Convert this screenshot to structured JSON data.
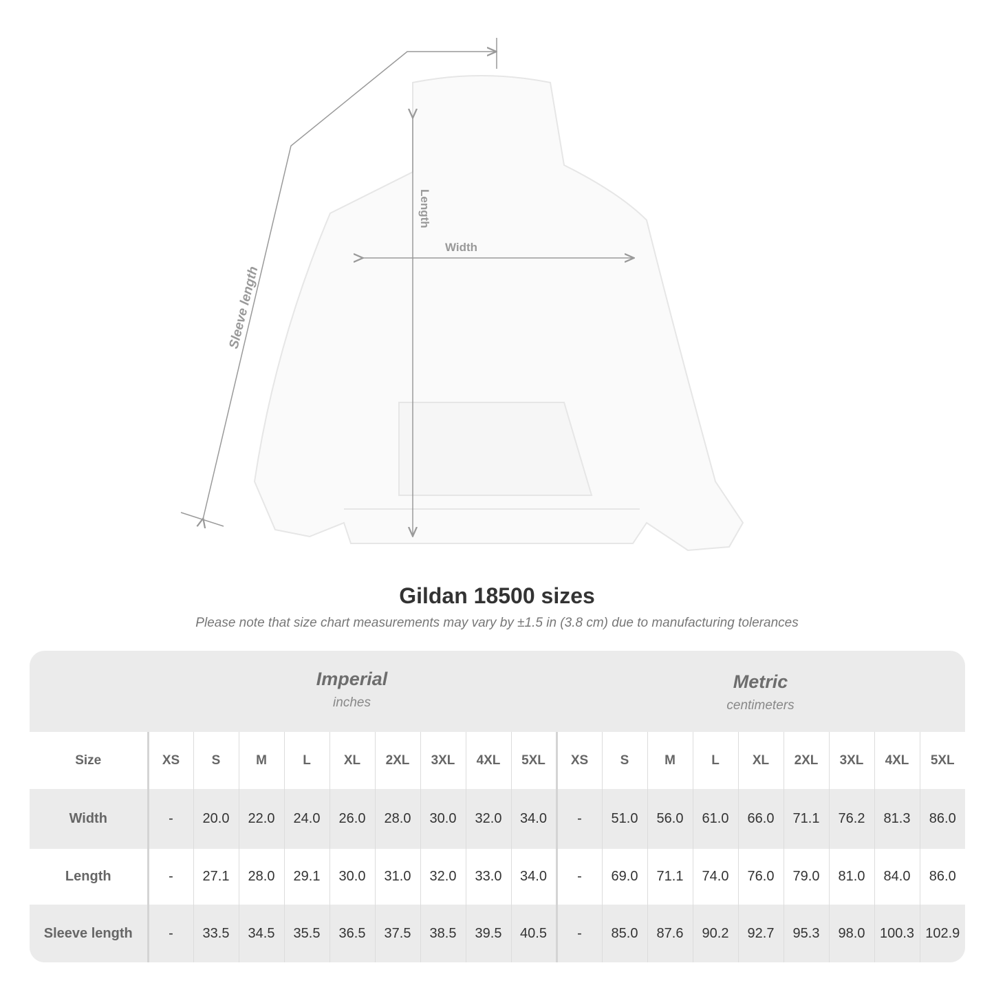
{
  "diagram": {
    "labels": {
      "length": "Length",
      "width": "Width",
      "sleeve": "Sleeve length"
    }
  },
  "title": "Gildan 18500 sizes",
  "note": "Please note that size chart measurements may vary by ±1.5 in (3.8 cm) due to manufacturing tolerances",
  "imperial": {
    "name": "Imperial",
    "unit": "inches"
  },
  "metric": {
    "name": "Metric",
    "unit": "centimeters"
  },
  "size_label": "Size",
  "sizes": [
    "XS",
    "S",
    "M",
    "L",
    "XL",
    "2XL",
    "3XL",
    "4XL",
    "5XL"
  ],
  "rows": [
    {
      "label": "Width",
      "imperial": [
        "-",
        "20.0",
        "22.0",
        "24.0",
        "26.0",
        "28.0",
        "30.0",
        "32.0",
        "34.0"
      ],
      "metric": [
        "-",
        "51.0",
        "56.0",
        "61.0",
        "66.0",
        "71.1",
        "76.2",
        "81.3",
        "86.0"
      ]
    },
    {
      "label": "Length",
      "imperial": [
        "-",
        "27.1",
        "28.0",
        "29.1",
        "30.0",
        "31.0",
        "32.0",
        "33.0",
        "34.0"
      ],
      "metric": [
        "-",
        "69.0",
        "71.1",
        "74.0",
        "76.0",
        "79.0",
        "81.0",
        "84.0",
        "86.0"
      ]
    },
    {
      "label": "Sleeve length",
      "imperial": [
        "-",
        "33.5",
        "34.5",
        "35.5",
        "36.5",
        "37.5",
        "38.5",
        "39.5",
        "40.5"
      ],
      "metric": [
        "-",
        "85.0",
        "87.6",
        "90.2",
        "92.7",
        "95.3",
        "98.0",
        "100.3",
        "102.9"
      ]
    }
  ],
  "colors": {
    "band": "#ebebeb",
    "measure_line": "#999999",
    "title": "#333333"
  }
}
